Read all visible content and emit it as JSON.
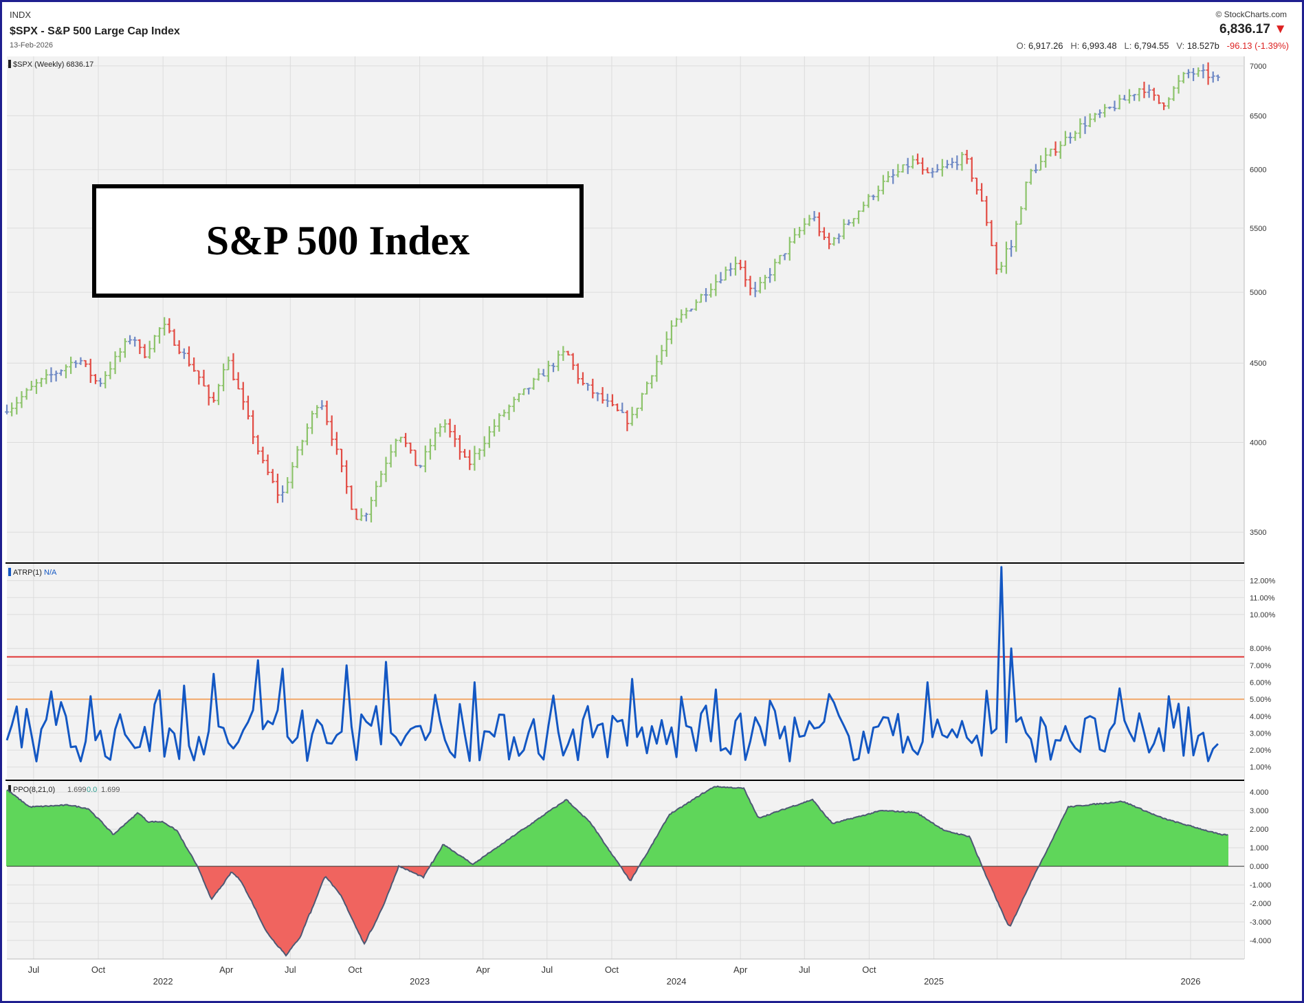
{
  "header": {
    "exchange": "INDX",
    "title": "$SPX - S&P 500 Large Cap Index",
    "date": "13-Feb-2026",
    "brand": "© StockCharts.com",
    "last_price": "6,836.17",
    "down_arrow": "▼",
    "open_label": "O:",
    "open": "6,917.26",
    "high_label": "H:",
    "high": "6,993.48",
    "low_label": "L:",
    "low": "6,794.55",
    "volume_label": "V:",
    "volume": "18.527b",
    "change": "-96.13 (-1.39%)"
  },
  "overlay_title": "S&P 500 Index",
  "colors": {
    "up_bar": "#8cc36a",
    "down_bar": "#e24b43",
    "flat_bar": "#6c87c4",
    "atrp_line": "#1357c3",
    "atrp_upper": "#e03434",
    "atrp_lower": "#f2a86b",
    "ppo_pos": "#5fd65a",
    "ppo_neg": "#f0645f",
    "ppo_line": "#4d5873",
    "panel_bg": "#f2f2f2",
    "grid": "#dcdcdc"
  },
  "chart_data": [
    {
      "type": "ohlc-bar",
      "panel_label": "$SPX (Weekly) 6836.17",
      "scale": "log",
      "ylim": [
        3350,
        7100
      ],
      "y_ticks": [
        3500,
        4000,
        4500,
        5000,
        5500,
        6000,
        6500,
        7000
      ],
      "x_ticks": [
        "Jul",
        "Oct",
        "Jan",
        "Apr",
        "Jul",
        "Oct",
        "Jan",
        "Apr",
        "Jul",
        "Oct",
        "Jan",
        "Apr",
        "Jul",
        "Oct",
        "Jan"
      ],
      "x_years": [
        "2022",
        "2023",
        "2024",
        "2025",
        "2026"
      ],
      "x_range": [
        "2021-05-24",
        "2026-02-13"
      ],
      "close_path": [
        {
          "date": "2021-05-28",
          "value": 4210
        },
        {
          "date": "2021-07-02",
          "value": 4352
        },
        {
          "date": "2021-08-13",
          "value": 4470
        },
        {
          "date": "2021-09-03",
          "value": 4535
        },
        {
          "date": "2021-10-01",
          "value": 4357
        },
        {
          "date": "2021-11-19",
          "value": 4700
        },
        {
          "date": "2021-12-03",
          "value": 4540
        },
        {
          "date": "2021-12-31",
          "value": 4766
        },
        {
          "date": "2022-02-25",
          "value": 4380
        },
        {
          "date": "2022-03-11",
          "value": 4205
        },
        {
          "date": "2022-04-01",
          "value": 4545
        },
        {
          "date": "2022-05-20",
          "value": 3900
        },
        {
          "date": "2022-06-17",
          "value": 3675
        },
        {
          "date": "2022-08-12",
          "value": 4280
        },
        {
          "date": "2022-09-30",
          "value": 3585
        },
        {
          "date": "2022-10-14",
          "value": 3580
        },
        {
          "date": "2022-12-02",
          "value": 4070
        },
        {
          "date": "2022-12-30",
          "value": 3840
        },
        {
          "date": "2023-02-03",
          "value": 4135
        },
        {
          "date": "2023-03-10",
          "value": 3860
        },
        {
          "date": "2023-04-28",
          "value": 4170
        },
        {
          "date": "2023-07-28",
          "value": 4580
        },
        {
          "date": "2023-08-18",
          "value": 4370
        },
        {
          "date": "2023-10-27",
          "value": 4120
        },
        {
          "date": "2023-12-29",
          "value": 4770
        },
        {
          "date": "2024-03-28",
          "value": 5250
        },
        {
          "date": "2024-04-19",
          "value": 4967
        },
        {
          "date": "2024-07-12",
          "value": 5615
        },
        {
          "date": "2024-08-02",
          "value": 5345
        },
        {
          "date": "2024-10-18",
          "value": 5865
        },
        {
          "date": "2024-12-06",
          "value": 6090
        },
        {
          "date": "2024-12-20",
          "value": 5930
        },
        {
          "date": "2025-02-14",
          "value": 6115
        },
        {
          "date": "2025-03-14",
          "value": 5640
        },
        {
          "date": "2025-04-04",
          "value": 5075
        },
        {
          "date": "2025-04-11",
          "value": 5360
        },
        {
          "date": "2025-04-18",
          "value": 5280
        },
        {
          "date": "2025-05-16",
          "value": 5960
        },
        {
          "date": "2025-07-25",
          "value": 6390
        },
        {
          "date": "2025-09-26",
          "value": 6640
        },
        {
          "date": "2025-10-24",
          "value": 6790
        },
        {
          "date": "2025-11-21",
          "value": 6600
        },
        {
          "date": "2025-12-26",
          "value": 6930
        },
        {
          "date": "2026-01-23",
          "value": 6915
        },
        {
          "date": "2026-02-13",
          "value": 6836
        }
      ]
    },
    {
      "type": "line",
      "panel_label": "ATRP(1)",
      "panel_value": "N/A",
      "series_units": "%",
      "ylim": [
        0.3,
        13.0
      ],
      "y_ticks": [
        "1.00%",
        "2.00%",
        "3.00%",
        "4.00%",
        "5.00%",
        "6.00%",
        "7.00%",
        "8.00%",
        "10.00%",
        "11.00%",
        "12.00%"
      ],
      "y_tick_values": [
        1,
        2,
        3,
        4,
        5,
        6,
        7,
        8,
        10,
        11,
        12
      ],
      "reference_lines": [
        7.5,
        5.0
      ],
      "key_points": [
        {
          "date": "2022-01-28",
          "value": 5.8
        },
        {
          "date": "2022-03-11",
          "value": 6.5
        },
        {
          "date": "2022-05-13",
          "value": 7.3
        },
        {
          "date": "2022-06-17",
          "value": 6.8
        },
        {
          "date": "2022-09-16",
          "value": 7.0
        },
        {
          "date": "2022-11-11",
          "value": 7.2
        },
        {
          "date": "2023-03-17",
          "value": 6.0
        },
        {
          "date": "2023-10-27",
          "value": 6.2
        },
        {
          "date": "2024-08-09",
          "value": 4.8
        },
        {
          "date": "2024-12-20",
          "value": 6.0
        },
        {
          "date": "2025-03-14",
          "value": 5.5
        },
        {
          "date": "2025-04-04",
          "value": 12.8
        },
        {
          "date": "2025-04-18",
          "value": 8.0
        },
        {
          "date": "2026-02-13",
          "value": 2.9
        }
      ]
    },
    {
      "type": "area",
      "panel_label": "PPO(8,21,0)",
      "panel_values": [
        "1.699",
        "0.0",
        "1.699"
      ],
      "ylim": [
        -5.0,
        4.6
      ],
      "y_ticks": [
        "4.000",
        "3.000",
        "2.000",
        "1.000",
        "0.000",
        "-1.000",
        "-2.000",
        "-3.000",
        "-4.000"
      ],
      "y_tick_values": [
        4,
        3,
        2,
        1,
        0,
        -1,
        -2,
        -3,
        -4
      ],
      "series": [
        {
          "values": [
            {
              "date": "2021-05-24",
              "value": 4.1
            },
            {
              "date": "2021-06-25",
              "value": 3.2
            },
            {
              "date": "2021-08-20",
              "value": 3.3
            },
            {
              "date": "2021-09-17",
              "value": 3.1
            },
            {
              "date": "2021-10-22",
              "value": 1.7
            },
            {
              "date": "2021-11-26",
              "value": 2.9
            },
            {
              "date": "2021-12-10",
              "value": 2.4
            },
            {
              "date": "2021-12-31",
              "value": 2.4
            },
            {
              "date": "2022-01-21",
              "value": 1.9
            },
            {
              "date": "2022-02-18",
              "value": 0.0
            },
            {
              "date": "2022-03-11",
              "value": -1.8
            },
            {
              "date": "2022-04-08",
              "value": -0.3
            },
            {
              "date": "2022-04-22",
              "value": -0.8
            },
            {
              "date": "2022-05-27",
              "value": -3.5
            },
            {
              "date": "2022-06-24",
              "value": -4.8
            },
            {
              "date": "2022-07-15",
              "value": -3.8
            },
            {
              "date": "2022-08-19",
              "value": -0.5
            },
            {
              "date": "2022-09-09",
              "value": -1.5
            },
            {
              "date": "2022-10-14",
              "value": -4.2
            },
            {
              "date": "2022-11-11",
              "value": -2.0
            },
            {
              "date": "2022-12-02",
              "value": 0.0
            },
            {
              "date": "2023-01-06",
              "value": -0.6
            },
            {
              "date": "2023-02-03",
              "value": 1.2
            },
            {
              "date": "2023-03-17",
              "value": 0.1
            },
            {
              "date": "2023-05-05",
              "value": 1.4
            },
            {
              "date": "2023-07-28",
              "value": 3.6
            },
            {
              "date": "2023-09-01",
              "value": 2.3
            },
            {
              "date": "2023-10-27",
              "value": -0.8
            },
            {
              "date": "2023-12-22",
              "value": 2.8
            },
            {
              "date": "2024-02-23",
              "value": 4.3
            },
            {
              "date": "2024-04-05",
              "value": 4.2
            },
            {
              "date": "2024-04-26",
              "value": 2.6
            },
            {
              "date": "2024-07-12",
              "value": 3.6
            },
            {
              "date": "2024-08-09",
              "value": 2.3
            },
            {
              "date": "2024-10-18",
              "value": 3.0
            },
            {
              "date": "2024-12-06",
              "value": 2.9
            },
            {
              "date": "2025-01-17",
              "value": 1.9
            },
            {
              "date": "2025-02-21",
              "value": 1.6
            },
            {
              "date": "2025-03-14",
              "value": -0.4
            },
            {
              "date": "2025-04-18",
              "value": -3.3
            },
            {
              "date": "2025-05-23",
              "value": -0.5
            },
            {
              "date": "2025-07-11",
              "value": 3.2
            },
            {
              "date": "2025-09-26",
              "value": 3.5
            },
            {
              "date": "2025-11-21",
              "value": 2.6
            },
            {
              "date": "2026-02-13",
              "value": 1.7
            }
          ]
        }
      ]
    }
  ]
}
